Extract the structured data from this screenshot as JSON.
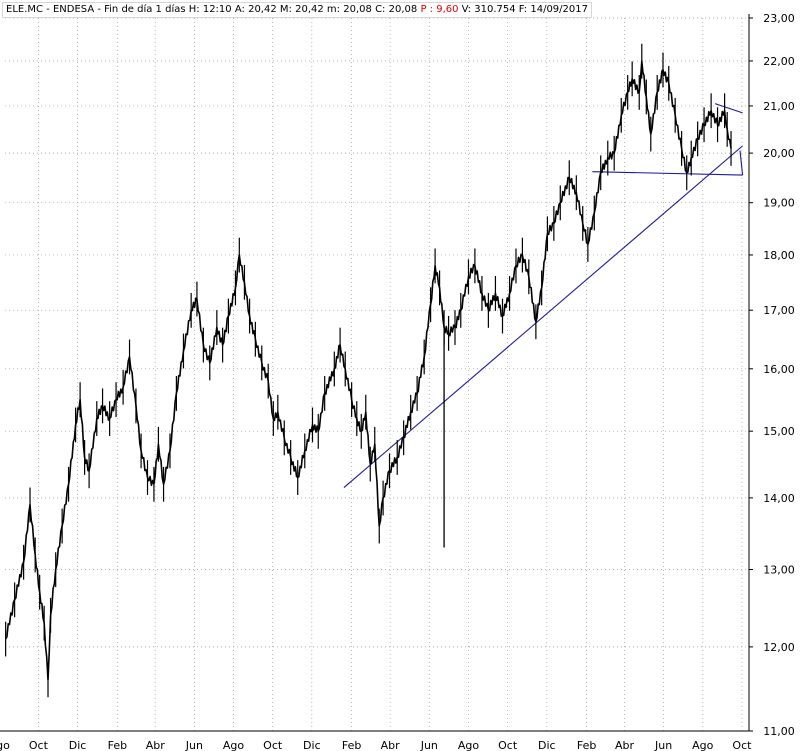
{
  "header": {
    "symbol": "ELE.MC - ENDESA",
    "period": "Fin de día 1 días",
    "high_label": "H:",
    "high": "12:10",
    "ask_label": "A:",
    "ask": "20,42",
    "mid_label": "M:",
    "mid": "20,42",
    "min_label": "m:",
    "min": "20,08",
    "close_label": "C:",
    "close": "20,08",
    "p_label": "P :",
    "p": "9,60",
    "vol_label": "V:",
    "vol": "310.754",
    "date_label": "F:",
    "date": "14/09/2017"
  },
  "colors": {
    "price": "#000000",
    "trend": "#1a1aa0",
    "grid": "#9a9a9a",
    "highlight": "#e00000"
  },
  "chart_data": {
    "type": "line",
    "title": "",
    "xlabel": "",
    "ylabel": "",
    "ylim": [
      11.0,
      23.0
    ],
    "y_scale": "log",
    "grid": true,
    "y_ticks": [
      {
        "v": 11,
        "label": "11,00"
      },
      {
        "v": 12,
        "label": "12,00"
      },
      {
        "v": 13,
        "label": "13,00"
      },
      {
        "v": 14,
        "label": "14,00"
      },
      {
        "v": 15,
        "label": "15,00"
      },
      {
        "v": 16,
        "label": "16,00"
      },
      {
        "v": 17,
        "label": "17,00"
      },
      {
        "v": 18,
        "label": "18,00"
      },
      {
        "v": 19,
        "label": "19,00"
      },
      {
        "v": 20,
        "label": "20,00"
      },
      {
        "v": 21,
        "label": "21,00"
      },
      {
        "v": 22,
        "label": "22,00"
      },
      {
        "v": 23,
        "label": "23,00"
      }
    ],
    "x_ticks": [
      {
        "date": "2014-08-01",
        "label": "Ago"
      },
      {
        "date": "2014-10-01",
        "label": "Oct"
      },
      {
        "date": "2014-12-01",
        "label": "Dic"
      },
      {
        "date": "2015-02-01",
        "label": "Feb"
      },
      {
        "date": "2015-04-01",
        "label": "Abr"
      },
      {
        "date": "2015-06-01",
        "label": "Jun"
      },
      {
        "date": "2015-08-01",
        "label": "Ago"
      },
      {
        "date": "2015-10-01",
        "label": "Oct"
      },
      {
        "date": "2015-12-01",
        "label": "Dic"
      },
      {
        "date": "2016-02-01",
        "label": "Feb"
      },
      {
        "date": "2016-04-01",
        "label": "Abr"
      },
      {
        "date": "2016-06-01",
        "label": "Jun"
      },
      {
        "date": "2016-08-01",
        "label": "Ago"
      },
      {
        "date": "2016-10-01",
        "label": "Oct"
      },
      {
        "date": "2016-12-01",
        "label": "Dic"
      },
      {
        "date": "2017-02-01",
        "label": "Feb"
      },
      {
        "date": "2017-04-01",
        "label": "Abr"
      },
      {
        "date": "2017-06-01",
        "label": "Jun"
      },
      {
        "date": "2017-08-01",
        "label": "Ago"
      },
      {
        "date": "2017-10-01",
        "label": "Oct"
      }
    ],
    "xlim": [
      "2014-08-10",
      "2017-10-12"
    ],
    "series": [
      {
        "values": [
          [
            "2014-08-11",
            12.1
          ],
          [
            "2014-08-25",
            12.6
          ],
          [
            "2014-09-08",
            13.1
          ],
          [
            "2014-09-18",
            13.9
          ],
          [
            "2014-09-26",
            13.2
          ],
          [
            "2014-10-03",
            12.7
          ],
          [
            "2014-10-10",
            12.3
          ],
          [
            "2014-10-16",
            11.6
          ],
          [
            "2014-10-20",
            12.4
          ],
          [
            "2014-10-28",
            13.0
          ],
          [
            "2014-11-07",
            13.6
          ],
          [
            "2014-11-17",
            14.2
          ],
          [
            "2014-11-28",
            15.1
          ],
          [
            "2014-12-05",
            15.5
          ],
          [
            "2014-12-12",
            14.6
          ],
          [
            "2014-12-19",
            14.4
          ],
          [
            "2014-12-31",
            15.2
          ],
          [
            "2015-01-09",
            15.4
          ],
          [
            "2015-01-20",
            15.2
          ],
          [
            "2015-01-30",
            15.5
          ],
          [
            "2015-02-10",
            15.7
          ],
          [
            "2015-02-20",
            16.2
          ],
          [
            "2015-03-02",
            15.4
          ],
          [
            "2015-03-10",
            14.7
          ],
          [
            "2015-03-20",
            14.3
          ],
          [
            "2015-03-30",
            14.2
          ],
          [
            "2015-04-06",
            14.8
          ],
          [
            "2015-04-14",
            14.2
          ],
          [
            "2015-04-24",
            14.7
          ],
          [
            "2015-05-04",
            15.6
          ],
          [
            "2015-05-15",
            16.3
          ],
          [
            "2015-05-27",
            17.0
          ],
          [
            "2015-06-05",
            17.2
          ],
          [
            "2015-06-15",
            16.4
          ],
          [
            "2015-06-25",
            16.1
          ],
          [
            "2015-07-06",
            16.7
          ],
          [
            "2015-07-15",
            16.4
          ],
          [
            "2015-07-24",
            16.9
          ],
          [
            "2015-08-04",
            17.4
          ],
          [
            "2015-08-10",
            18.0
          ],
          [
            "2015-08-18",
            17.5
          ],
          [
            "2015-08-26",
            16.9
          ],
          [
            "2015-09-04",
            16.5
          ],
          [
            "2015-09-14",
            16.1
          ],
          [
            "2015-09-24",
            15.8
          ],
          [
            "2015-10-02",
            15.2
          ],
          [
            "2015-10-09",
            15.3
          ],
          [
            "2015-10-19",
            14.9
          ],
          [
            "2015-10-29",
            14.6
          ],
          [
            "2015-11-09",
            14.3
          ],
          [
            "2015-11-20",
            14.7
          ],
          [
            "2015-12-02",
            15.1
          ],
          [
            "2015-12-11",
            15.0
          ],
          [
            "2015-12-21",
            15.6
          ],
          [
            "2016-01-05",
            16.0
          ],
          [
            "2016-01-14",
            16.4
          ],
          [
            "2016-01-22",
            16.0
          ],
          [
            "2016-02-01",
            15.5
          ],
          [
            "2016-02-09",
            15.2
          ],
          [
            "2016-02-16",
            15.0
          ],
          [
            "2016-02-23",
            15.3
          ],
          [
            "2016-03-01",
            14.5
          ],
          [
            "2016-03-08",
            14.8
          ],
          [
            "2016-03-15",
            13.6
          ],
          [
            "2016-03-21",
            14.0
          ],
          [
            "2016-03-31",
            14.4
          ],
          [
            "2016-04-12",
            14.6
          ],
          [
            "2016-04-22",
            14.9
          ],
          [
            "2016-05-03",
            15.3
          ],
          [
            "2016-05-13",
            15.6
          ],
          [
            "2016-05-24",
            16.2
          ],
          [
            "2016-06-03",
            17.1
          ],
          [
            "2016-06-10",
            17.8
          ],
          [
            "2016-06-17",
            17.4
          ],
          [
            "2016-06-24",
            16.7
          ],
          [
            "2016-07-01",
            16.6
          ],
          [
            "2016-07-11",
            16.7
          ],
          [
            "2016-07-20",
            17.0
          ],
          [
            "2016-08-01",
            17.6
          ],
          [
            "2016-08-11",
            17.8
          ],
          [
            "2016-08-22",
            17.3
          ],
          [
            "2016-09-01",
            17.0
          ],
          [
            "2016-09-12",
            17.3
          ],
          [
            "2016-09-23",
            16.9
          ],
          [
            "2016-10-04",
            17.3
          ],
          [
            "2016-10-14",
            17.8
          ],
          [
            "2016-10-24",
            18.0
          ],
          [
            "2016-11-03",
            17.6
          ],
          [
            "2016-11-14",
            16.8
          ],
          [
            "2016-11-23",
            17.4
          ],
          [
            "2016-12-02",
            18.4
          ],
          [
            "2016-12-12",
            18.6
          ],
          [
            "2016-12-22",
            19.0
          ],
          [
            "2017-01-05",
            19.5
          ],
          [
            "2017-01-16",
            19.2
          ],
          [
            "2017-01-26",
            18.6
          ],
          [
            "2017-02-03",
            18.2
          ],
          [
            "2017-02-13",
            18.8
          ],
          [
            "2017-02-23",
            19.6
          ],
          [
            "2017-03-06",
            19.9
          ],
          [
            "2017-03-16",
            20.0
          ],
          [
            "2017-03-27",
            20.8
          ],
          [
            "2017-04-06",
            21.3
          ],
          [
            "2017-04-13",
            21.6
          ],
          [
            "2017-04-24",
            21.3
          ],
          [
            "2017-04-28",
            22.0
          ],
          [
            "2017-05-05",
            21.2
          ],
          [
            "2017-05-12",
            20.4
          ],
          [
            "2017-05-22",
            21.3
          ],
          [
            "2017-05-31",
            21.8
          ],
          [
            "2017-06-09",
            21.5
          ],
          [
            "2017-06-19",
            20.8
          ],
          [
            "2017-06-29",
            20.1
          ],
          [
            "2017-07-07",
            19.6
          ],
          [
            "2017-07-14",
            19.9
          ],
          [
            "2017-07-24",
            20.3
          ],
          [
            "2017-08-03",
            20.6
          ],
          [
            "2017-08-14",
            20.9
          ],
          [
            "2017-08-24",
            20.6
          ],
          [
            "2017-09-04",
            20.9
          ],
          [
            "2017-09-08",
            20.5
          ],
          [
            "2017-09-14",
            20.1
          ]
        ]
      }
    ],
    "spikes": [
      {
        "date": "2016-06-24",
        "high": 16.6,
        "low": 13.3
      }
    ],
    "trendlines": [
      {
        "start": [
          "2016-01-20",
          14.15
        ],
        "end": [
          "2017-10-02",
          20.15
        ]
      },
      {
        "start": [
          "2017-02-10",
          19.62
        ],
        "end": [
          "2017-10-02",
          19.55
        ]
      },
      {
        "start": [
          "2017-08-20",
          21.05
        ],
        "end": [
          "2017-10-02",
          20.85
        ]
      },
      {
        "start": [
          "2017-09-28",
          20.05
        ],
        "end": [
          "2017-10-02",
          19.55
        ]
      }
    ]
  }
}
